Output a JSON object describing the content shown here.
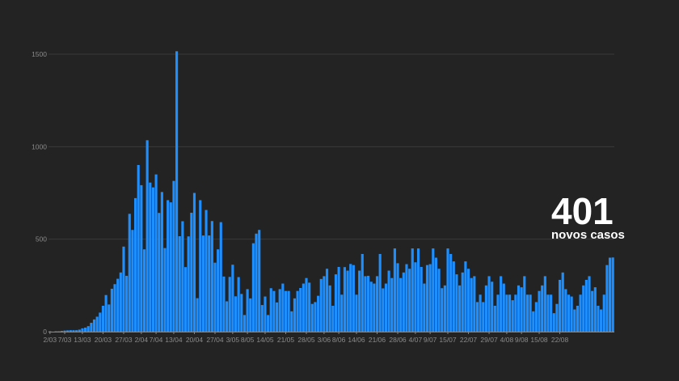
{
  "callout": {
    "value": "401",
    "label": "novos casos"
  },
  "colors": {
    "background": "#232323",
    "bar": "#1e8fff",
    "grid": "#3a3a3a",
    "text": "#8a8a8a"
  },
  "chart_data": {
    "type": "bar",
    "title": "",
    "xlabel": "",
    "ylabel": "",
    "ylim": [
      0,
      1500
    ],
    "yticks": [
      "0",
      "500",
      "1000",
      "1500"
    ],
    "grid": true,
    "x_tick_labels": [
      "2/03",
      "7/03",
      "13/03",
      "20/03",
      "27/03",
      "2/04",
      "7/04",
      "13/04",
      "20/04",
      "27/04",
      "3/05",
      "8/05",
      "14/05",
      "21/05",
      "28/05",
      "3/06",
      "8/06",
      "14/06",
      "21/06",
      "28/06",
      "4/07",
      "9/07",
      "15/07",
      "22/07",
      "29/07",
      "4/08",
      "9/08",
      "15/08",
      "22/08"
    ],
    "x_tick_indices": [
      0,
      5,
      11,
      18,
      25,
      31,
      36,
      42,
      49,
      56,
      62,
      67,
      73,
      80,
      87,
      93,
      98,
      104,
      111,
      118,
      124,
      129,
      135,
      142,
      149,
      155,
      160,
      166,
      173
    ],
    "values": [
      2,
      0,
      2,
      2,
      4,
      6,
      7,
      8,
      8,
      8,
      11,
      18,
      22,
      30,
      48,
      66,
      81,
      103,
      140,
      198,
      147,
      232,
      257,
      286,
      320,
      460,
      302,
      637,
      550,
      722,
      901,
      792,
      445,
      1035,
      806,
      780,
      850,
      642,
      755,
      452,
      711,
      699,
      815,
      1516,
      516,
      597,
      349,
      515,
      643,
      750,
      181,
      711,
      520,
      658,
      520,
      598,
      373,
      445,
      592,
      298,
      164,
      296,
      362,
      191,
      295,
      204,
      90,
      230,
      180,
      478,
      530,
      550,
      144,
      190,
      90,
      235,
      220,
      158,
      230,
      260,
      220,
      220,
      110,
      180,
      220,
      236,
      260,
      290,
      265,
      150,
      160,
      194,
      285,
      300,
      340,
      250,
      140,
      310,
      350,
      200,
      349,
      330,
      366,
      360,
      200,
      330,
      420,
      300,
      302,
      270,
      260,
      300,
      420,
      234,
      260,
      330,
      290,
      450,
      370,
      290,
      320,
      365,
      340,
      450,
      375,
      450,
      350,
      260,
      360,
      365,
      450,
      400,
      340,
      235,
      250,
      450,
      420,
      380,
      310,
      250,
      320,
      380,
      340,
      290,
      300,
      160,
      200,
      160,
      250,
      300,
      270,
      140,
      200,
      300,
      260,
      200,
      200,
      170,
      200,
      250,
      240,
      300,
      200,
      200,
      110,
      160,
      220,
      250,
      300,
      200,
      200,
      100,
      150,
      280,
      320,
      230,
      200,
      190,
      120,
      140,
      200,
      250,
      280,
      300,
      220,
      240,
      140,
      120,
      200,
      360,
      400,
      401
    ]
  }
}
